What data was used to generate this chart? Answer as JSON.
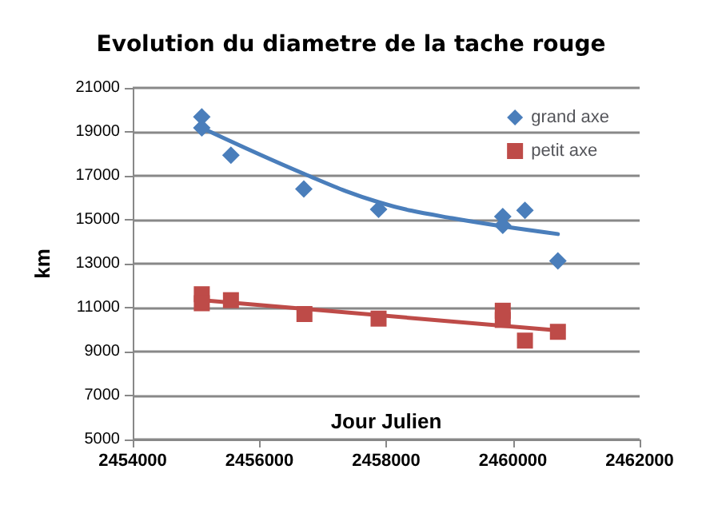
{
  "chart_data": {
    "type": "scatter",
    "title": "Evolution du diametre de la tache rouge",
    "xlabel": "Jour Julien",
    "ylabel": "km",
    "xlim": [
      2454000,
      2462000
    ],
    "xticks": [
      2454000,
      2456000,
      2458000,
      2460000,
      2462000
    ],
    "ylim": [
      5000,
      21000
    ],
    "yticks": [
      5000,
      7000,
      9000,
      11000,
      13000,
      15000,
      17000,
      19000,
      21000
    ],
    "grid": "y",
    "legend": "top right",
    "series": [
      {
        "name": "grand axe",
        "color": "#4a7ebb",
        "marker": "diamond",
        "x": [
          2455090,
          2455090,
          2455550,
          2456700,
          2457880,
          2459840,
          2459840,
          2460190,
          2460710
        ],
        "values": [
          19680,
          19180,
          17940,
          16400,
          15470,
          15150,
          14750,
          15430,
          13130
        ]
      },
      {
        "name": "petit axe",
        "color": "#be4b48",
        "marker": "square",
        "x": [
          2455090,
          2455090,
          2455550,
          2456710,
          2457880,
          2459840,
          2459840,
          2460190,
          2460710
        ],
        "values": [
          11610,
          11200,
          11340,
          10710,
          10500,
          10860,
          10440,
          9500,
          9900
        ]
      },
      {
        "type": "line",
        "color": "#4a7ebb",
        "x": [
          2455090,
          2456710,
          2457880,
          2459040,
          2460710
        ],
        "values": [
          19180,
          17080,
          15800,
          15070,
          14350
        ]
      },
      {
        "type": "line",
        "color": "#be4b48",
        "x": [
          2455090,
          2460710
        ],
        "values": [
          11340,
          9960
        ]
      }
    ]
  }
}
